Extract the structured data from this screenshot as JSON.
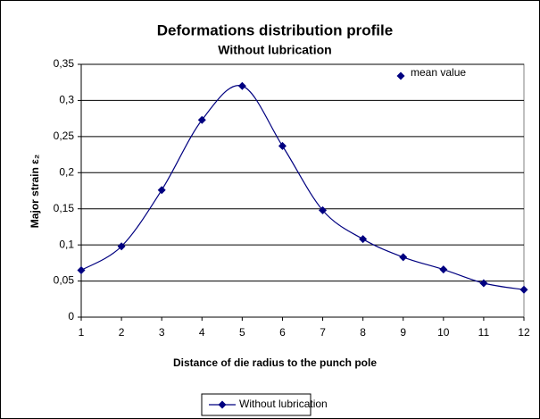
{
  "chart_data": {
    "type": "line",
    "title": "Deformations distribution profile",
    "subtitle": "Without lubrication",
    "x_label": "Distance of die radius to the punch pole",
    "y_label": "Major strain  ε₂",
    "annotation": "mean value",
    "x": [
      1,
      2,
      3,
      4,
      5,
      6,
      7,
      8,
      9,
      10,
      11,
      12
    ],
    "series": [
      {
        "name": "Without lubrication",
        "color": "#000080",
        "values": [
          0.065,
          0.098,
          0.176,
          0.273,
          0.32,
          0.237,
          0.148,
          0.108,
          0.083,
          0.066,
          0.047,
          0.038
        ]
      }
    ],
    "xlim": [
      1,
      12
    ],
    "xticks": [
      1,
      2,
      3,
      4,
      5,
      6,
      7,
      8,
      9,
      10,
      11,
      12
    ],
    "ylim": [
      0,
      0.35
    ],
    "yticks": [
      0,
      {
        "value": 0.05,
        "label": "0,05"
      },
      {
        "value": 0.1,
        "label": "0,1"
      },
      {
        "value": 0.15,
        "label": "0,15"
      },
      {
        "value": 0.2,
        "label": "0,2"
      },
      {
        "value": 0.25,
        "label": "0,25"
      },
      {
        "value": 0.3,
        "label": "0,3"
      },
      {
        "value": 0.35,
        "label": "0,35"
      }
    ],
    "grid": true,
    "smooth": true,
    "legend": "bottom"
  }
}
